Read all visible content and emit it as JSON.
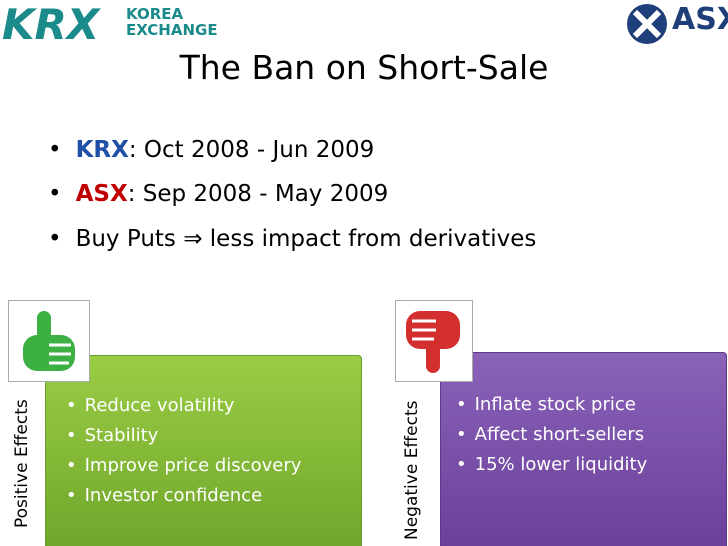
{
  "logos": [
    {
      "name": "KRX",
      "lines": [
        "KOREA",
        "EXCHANGE"
      ]
    },
    {
      "name": "ASX"
    }
  ],
  "title": "The Ban on Short-Sale",
  "bullets": [
    {
      "label": "KRX",
      "text": ": Oct 2008 - Jun 2009"
    },
    {
      "label": "ASX",
      "text": ": Sep 2008 - May 2009"
    },
    {
      "text": "Buy Puts ⇒ less impact from derivatives"
    }
  ],
  "panels": [
    {
      "label": "Positive Effects",
      "items": [
        "Reduce volatility",
        "Stability",
        "Improve price discovery",
        "Investor confidence"
      ]
    },
    {
      "label": "Negative Effects",
      "items": [
        "Inflate stock price",
        "Affect short-sellers",
        "15% lower liquidity"
      ]
    }
  ]
}
